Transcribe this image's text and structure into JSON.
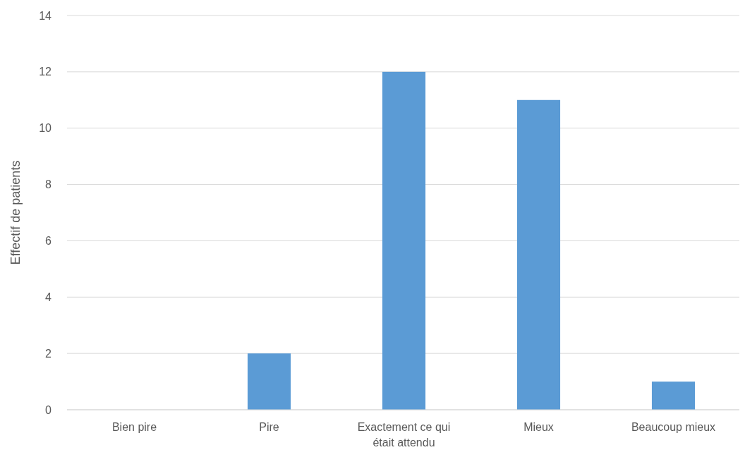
{
  "chart_data": {
    "type": "bar",
    "ylabel": "Effectif de patients",
    "categories": [
      "Bien pire",
      "Pire",
      "Exactement ce qui était attendu",
      "Mieux",
      "Beaucoup mieux"
    ],
    "values": [
      0,
      2,
      12,
      11,
      1
    ],
    "color": "#5b9bd5",
    "ylim": [
      0,
      14
    ],
    "yticks": [
      0,
      2,
      4,
      6,
      8,
      10,
      12,
      14
    ],
    "grid": "y"
  }
}
